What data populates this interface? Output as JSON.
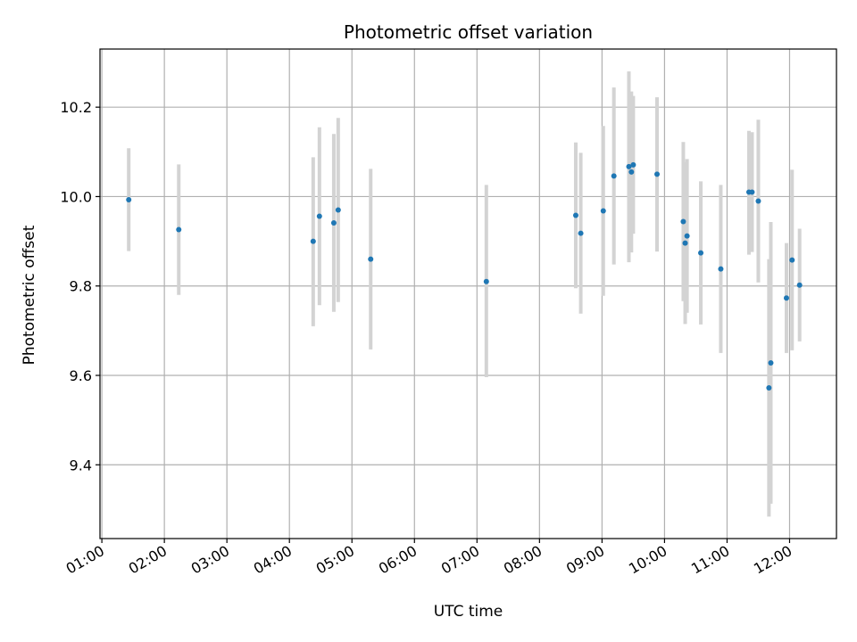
{
  "chart_data": {
    "type": "scatter",
    "title": "Photometric offset variation",
    "xlabel": "UTC time",
    "ylabel": "Photometric offset",
    "x_unit": "hours",
    "xlim": [
      0.97,
      12.75
    ],
    "ylim": [
      9.235,
      10.33
    ],
    "xticks": [
      {
        "value": 1,
        "label": "01:00"
      },
      {
        "value": 2,
        "label": "02:00"
      },
      {
        "value": 3,
        "label": "03:00"
      },
      {
        "value": 4,
        "label": "04:00"
      },
      {
        "value": 5,
        "label": "05:00"
      },
      {
        "value": 6,
        "label": "06:00"
      },
      {
        "value": 7,
        "label": "07:00"
      },
      {
        "value": 8,
        "label": "08:00"
      },
      {
        "value": 9,
        "label": "09:00"
      },
      {
        "value": 10,
        "label": "10:00"
      },
      {
        "value": 11,
        "label": "11:00"
      },
      {
        "value": 12,
        "label": "12:00"
      }
    ],
    "yticks": [
      {
        "value": 9.4,
        "label": "9.4"
      },
      {
        "value": 9.6,
        "label": "9.6"
      },
      {
        "value": 9.8,
        "label": "9.8"
      },
      {
        "value": 10.0,
        "label": "10.0"
      },
      {
        "value": 10.2,
        "label": "10.2"
      }
    ],
    "grid": true,
    "marker_color": "#1f77b4",
    "errorbar_color": "#d3d3d3",
    "points": [
      {
        "x": 1.43,
        "y": 9.993,
        "lo": 9.878,
        "hi": 10.108
      },
      {
        "x": 2.23,
        "y": 9.926,
        "lo": 9.78,
        "hi": 10.072
      },
      {
        "x": 4.38,
        "y": 9.9,
        "lo": 9.71,
        "hi": 10.088
      },
      {
        "x": 4.48,
        "y": 9.956,
        "lo": 9.757,
        "hi": 10.155
      },
      {
        "x": 4.71,
        "y": 9.941,
        "lo": 9.742,
        "hi": 10.14
      },
      {
        "x": 4.78,
        "y": 9.97,
        "lo": 9.764,
        "hi": 10.176
      },
      {
        "x": 5.3,
        "y": 9.86,
        "lo": 9.658,
        "hi": 10.062
      },
      {
        "x": 7.15,
        "y": 9.81,
        "lo": 9.596,
        "hi": 10.026
      },
      {
        "x": 8.58,
        "y": 9.958,
        "lo": 9.795,
        "hi": 10.121
      },
      {
        "x": 8.66,
        "y": 9.918,
        "lo": 9.738,
        "hi": 10.098
      },
      {
        "x": 9.02,
        "y": 9.968,
        "lo": 9.778,
        "hi": 10.158
      },
      {
        "x": 9.19,
        "y": 10.046,
        "lo": 9.848,
        "hi": 10.244
      },
      {
        "x": 9.43,
        "y": 10.067,
        "lo": 9.853,
        "hi": 10.28
      },
      {
        "x": 9.47,
        "y": 10.055,
        "lo": 9.875,
        "hi": 10.235
      },
      {
        "x": 9.5,
        "y": 10.071,
        "lo": 9.917,
        "hi": 10.225
      },
      {
        "x": 9.88,
        "y": 10.05,
        "lo": 9.877,
        "hi": 10.222
      },
      {
        "x": 10.3,
        "y": 9.944,
        "lo": 9.766,
        "hi": 10.122
      },
      {
        "x": 10.33,
        "y": 9.896,
        "lo": 9.715,
        "hi": 10.077
      },
      {
        "x": 10.36,
        "y": 9.912,
        "lo": 9.74,
        "hi": 10.084
      },
      {
        "x": 10.58,
        "y": 9.874,
        "lo": 9.714,
        "hi": 10.034
      },
      {
        "x": 10.9,
        "y": 9.838,
        "lo": 9.65,
        "hi": 10.026
      },
      {
        "x": 11.35,
        "y": 10.01,
        "lo": 9.87,
        "hi": 10.147
      },
      {
        "x": 11.4,
        "y": 10.01,
        "lo": 9.876,
        "hi": 10.144
      },
      {
        "x": 11.5,
        "y": 9.99,
        "lo": 9.808,
        "hi": 10.172
      },
      {
        "x": 11.67,
        "y": 9.572,
        "lo": 9.284,
        "hi": 9.86
      },
      {
        "x": 11.7,
        "y": 9.628,
        "lo": 9.313,
        "hi": 9.943
      },
      {
        "x": 11.95,
        "y": 9.773,
        "lo": 9.65,
        "hi": 9.896
      },
      {
        "x": 12.04,
        "y": 9.858,
        "lo": 9.656,
        "hi": 10.06
      },
      {
        "x": 12.16,
        "y": 9.802,
        "lo": 9.676,
        "hi": 9.928
      }
    ]
  }
}
